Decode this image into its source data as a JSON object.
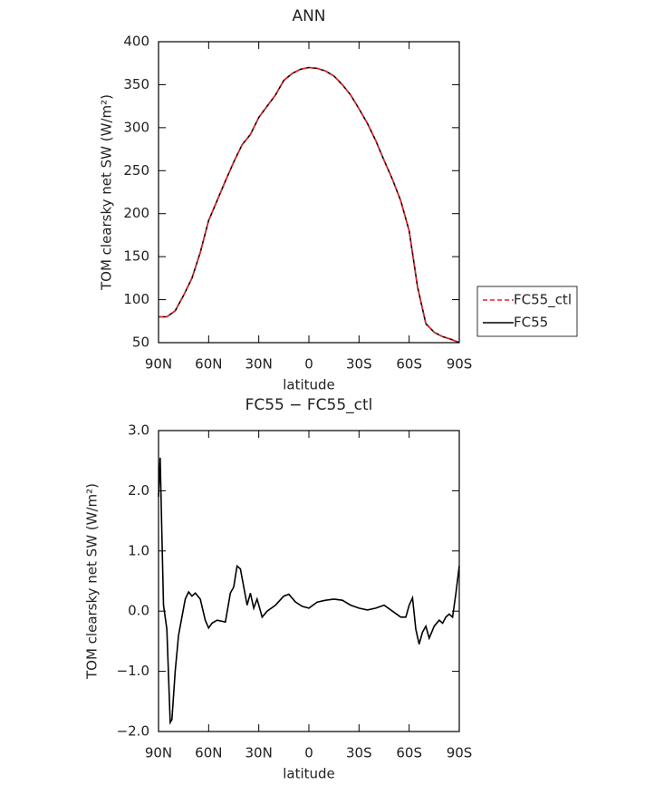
{
  "chart_data": [
    {
      "type": "line",
      "title": "ANN",
      "xlabel": "latitude",
      "ylabel": "TOM clearsky net SW (W/m²)",
      "x": [
        90,
        85,
        80,
        75,
        70,
        65,
        60,
        55,
        50,
        45,
        40,
        35,
        30,
        25,
        20,
        15,
        10,
        5,
        0,
        -5,
        -10,
        -15,
        -20,
        -25,
        -30,
        -35,
        -40,
        -45,
        -50,
        -55,
        -60,
        -65,
        -70,
        -75,
        -80,
        -85,
        -90
      ],
      "series": [
        {
          "name": "FC55_ctl",
          "color": "#e8202a",
          "linestyle": "dashed",
          "values": [
            80,
            80,
            87,
            105,
            125,
            155,
            192,
            215,
            238,
            260,
            280,
            292,
            312,
            325,
            338,
            355,
            363,
            368,
            370,
            369,
            366,
            360,
            350,
            338,
            322,
            305,
            285,
            262,
            240,
            215,
            180,
            115,
            72,
            62,
            57,
            54,
            50
          ]
        },
        {
          "name": "FC55",
          "color": "#000000",
          "linestyle": "solid",
          "values": [
            80,
            80,
            87,
            105,
            125,
            155,
            192,
            215,
            238,
            260,
            280,
            292,
            312,
            325,
            338,
            355,
            363,
            368,
            370,
            369,
            366,
            360,
            350,
            338,
            322,
            305,
            285,
            262,
            240,
            215,
            180,
            115,
            72,
            62,
            57,
            54,
            50
          ]
        }
      ],
      "xlim": [
        90,
        -90
      ],
      "xticks": [
        {
          "value": 90,
          "label": "90N"
        },
        {
          "value": 60,
          "label": "60N"
        },
        {
          "value": 30,
          "label": "30N"
        },
        0,
        {
          "value": -30,
          "label": "30S"
        },
        {
          "value": -60,
          "label": "60S"
        },
        {
          "value": -90,
          "label": "90S"
        }
      ],
      "ylim": [
        50,
        400
      ],
      "yticks": [
        50,
        100,
        150,
        200,
        250,
        300,
        350,
        400
      ],
      "legend": "right"
    },
    {
      "type": "line",
      "title": "FC55 − FC55_ctl",
      "xlabel": "latitude",
      "ylabel": "TOM clearsky net SW (W/m²)",
      "x": [
        90,
        89,
        87,
        85,
        83,
        82,
        80,
        78,
        76,
        74,
        72,
        70,
        68,
        65,
        62,
        60,
        58,
        55,
        50,
        47,
        45,
        43,
        41,
        39,
        37,
        35,
        33,
        31,
        28,
        25,
        20,
        15,
        12,
        8,
        4,
        0,
        -5,
        -10,
        -15,
        -20,
        -25,
        -30,
        -35,
        -40,
        -45,
        -50,
        -55,
        -58,
        -60,
        -62,
        -64,
        -66,
        -68,
        -70,
        -72,
        -75,
        -78,
        -80,
        -82,
        -84,
        -86,
        -88,
        -90
      ],
      "series": [
        {
          "color": "#000000",
          "linestyle": "solid",
          "values": [
            1.9,
            2.55,
            0.1,
            -0.3,
            -1.85,
            -1.8,
            -1.0,
            -0.4,
            -0.1,
            0.2,
            0.32,
            0.25,
            0.3,
            0.2,
            -0.15,
            -0.28,
            -0.2,
            -0.15,
            -0.18,
            0.3,
            0.4,
            0.75,
            0.7,
            0.4,
            0.1,
            0.3,
            0.05,
            0.2,
            -0.1,
            0.0,
            0.1,
            0.25,
            0.28,
            0.15,
            0.08,
            0.05,
            0.15,
            0.18,
            0.2,
            0.18,
            0.1,
            0.05,
            0.02,
            0.05,
            0.1,
            0.0,
            -0.1,
            -0.1,
            0.1,
            0.22,
            -0.3,
            -0.55,
            -0.35,
            -0.25,
            -0.45,
            -0.25,
            -0.15,
            -0.2,
            -0.1,
            -0.05,
            -0.1,
            0.3,
            0.75
          ]
        }
      ],
      "xlim": [
        90,
        -90
      ],
      "xticks": [
        {
          "value": 90,
          "label": "90N"
        },
        {
          "value": 60,
          "label": "60N"
        },
        {
          "value": 30,
          "label": "30N"
        },
        0,
        {
          "value": -30,
          "label": "30S"
        },
        {
          "value": -60,
          "label": "60S"
        },
        {
          "value": -90,
          "label": "90S"
        }
      ],
      "ylim": [
        -2,
        3
      ],
      "yticks": [
        {
          "value": -2,
          "label": "−2.0"
        },
        {
          "value": -1,
          "label": "−1.0"
        },
        {
          "value": 0,
          "label": "0.0"
        },
        {
          "value": 1,
          "label": "1.0"
        },
        {
          "value": 2,
          "label": "2.0"
        },
        {
          "value": 3,
          "label": "3.0"
        }
      ]
    }
  ]
}
